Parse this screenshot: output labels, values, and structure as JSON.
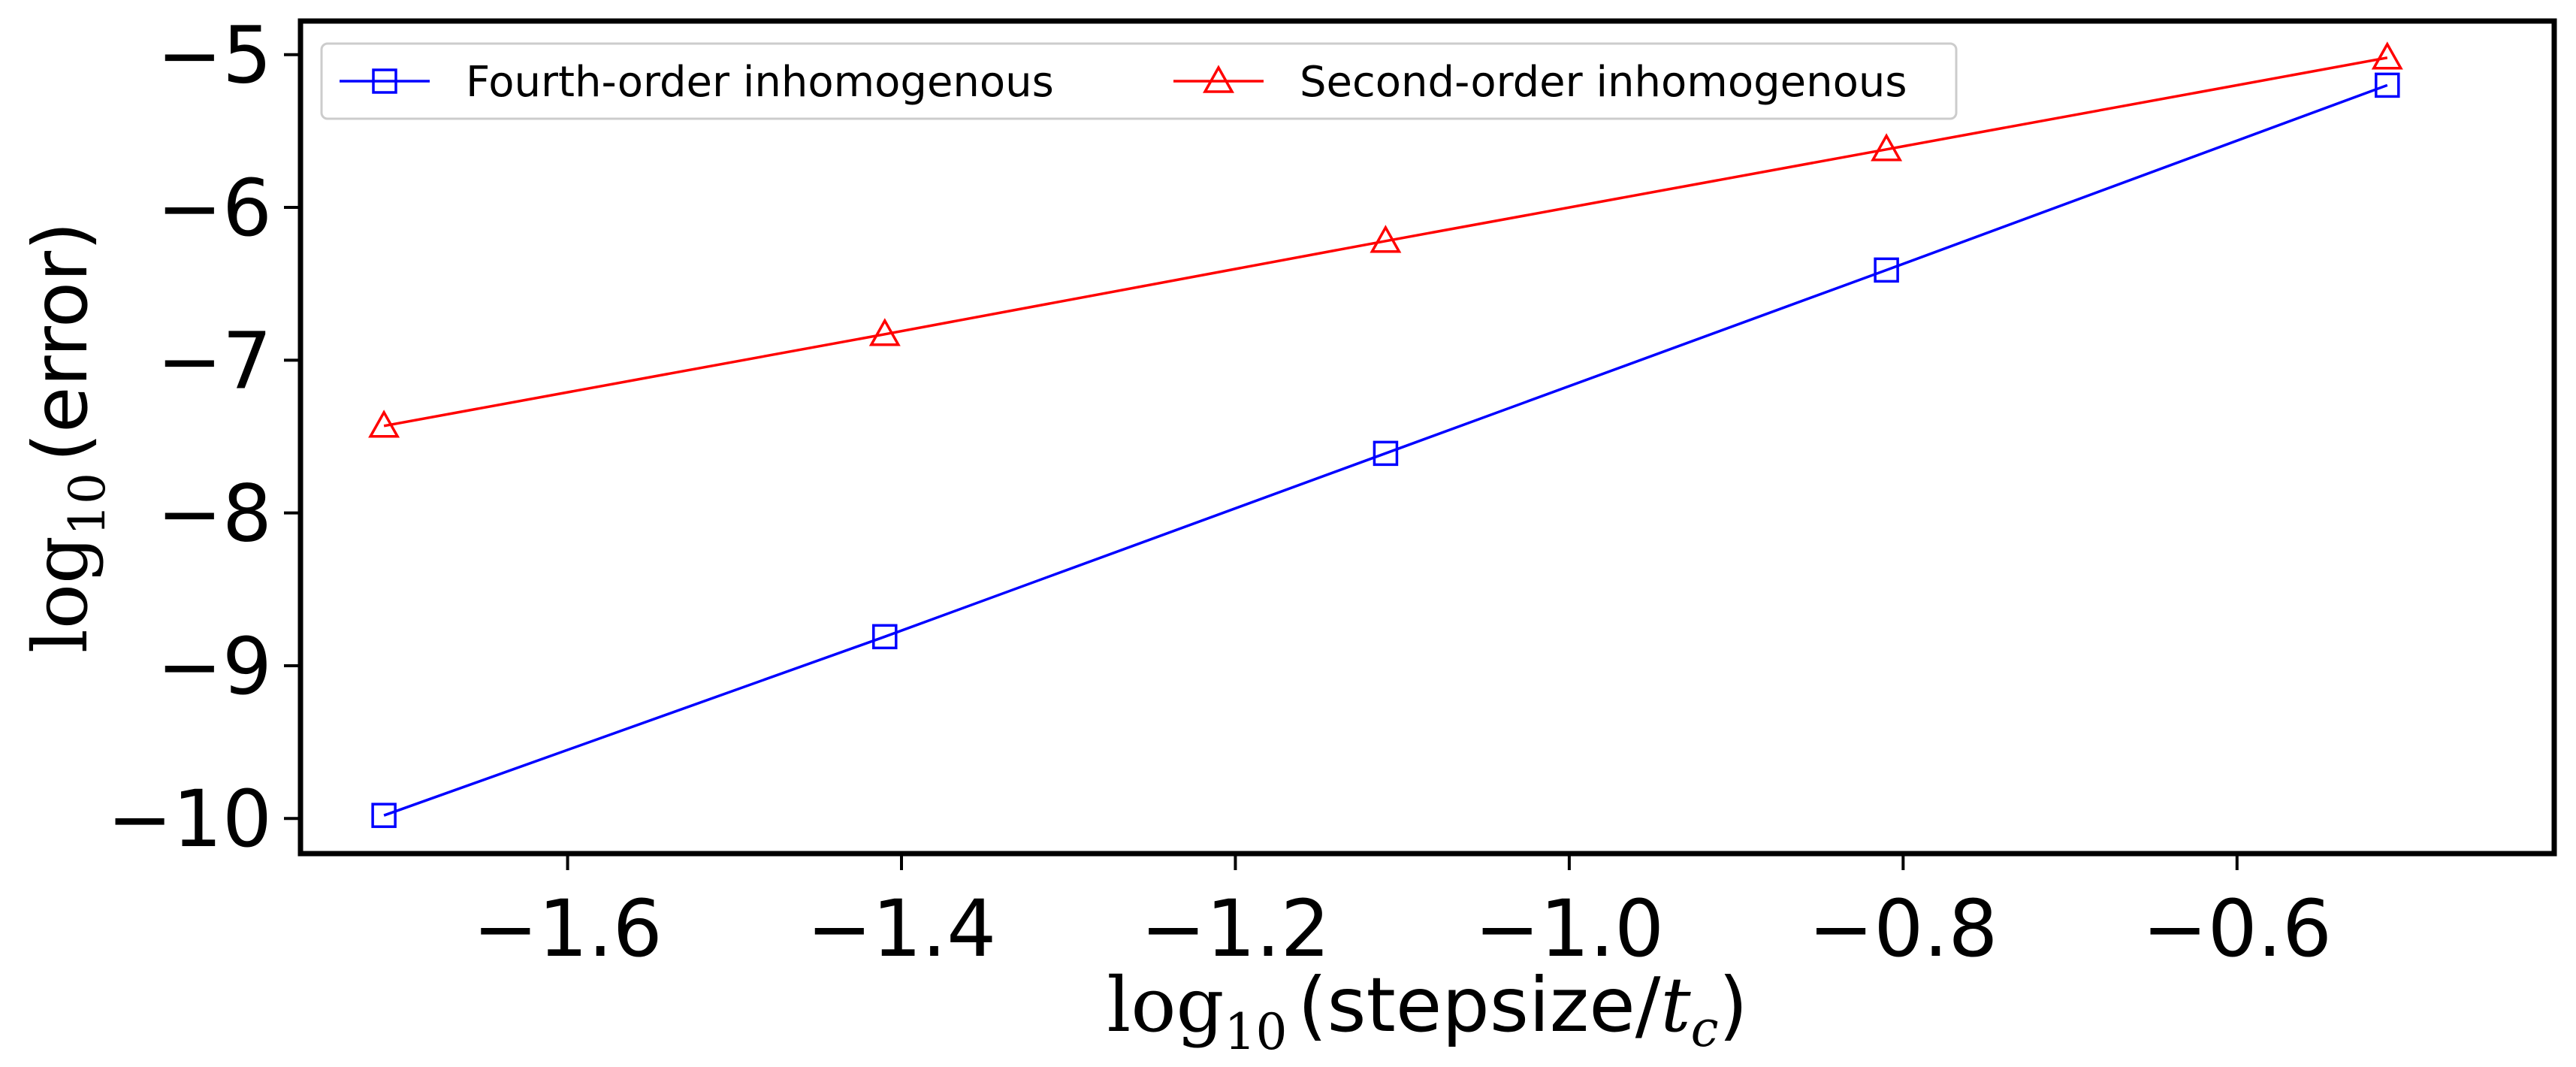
{
  "chart_data": {
    "type": "line",
    "title": "",
    "xlabel": {
      "fn": "log",
      "sub": "10",
      "open": "(stepsize/",
      "var": "t",
      "var_sub": "c",
      "close": ")"
    },
    "ylabel": {
      "fn": "log",
      "sub": "10",
      "text": "(error)"
    },
    "xlim": [
      -1.76,
      -0.41
    ],
    "ylim": [
      -10.23,
      -4.78
    ],
    "xticks": [
      -1.6,
      -1.4,
      -1.2,
      -1.0,
      -0.8,
      -0.6
    ],
    "xtick_labels": [
      "−1.6",
      "−1.4",
      "−1.2",
      "−1.0",
      "−0.8",
      "−0.6"
    ],
    "yticks": [
      -5,
      -6,
      -7,
      -8,
      -9,
      -10
    ],
    "ytick_labels": [
      "−5",
      "−6",
      "−7",
      "−8",
      "−9",
      "−10"
    ],
    "grid": false,
    "legend": "top-left",
    "series": [
      {
        "name": "Fourth-order inhomogenous",
        "color": "#0000ff",
        "marker": "square",
        "x": [
          -1.71,
          -1.41,
          -1.11,
          -0.81,
          -0.51
        ],
        "y": [
          -9.98,
          -8.81,
          -7.61,
          -6.41,
          -5.2
        ]
      },
      {
        "name": "Second-order inhomogenous",
        "color": "#ff0000",
        "marker": "triangle",
        "x": [
          -1.71,
          -1.41,
          -1.11,
          -0.81,
          -0.51
        ],
        "y": [
          -7.43,
          -6.83,
          -6.22,
          -5.62,
          -5.02
        ]
      }
    ]
  }
}
